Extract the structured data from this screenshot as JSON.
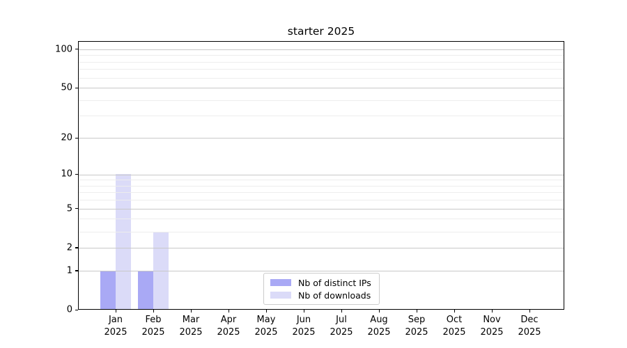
{
  "chart_data": {
    "type": "bar",
    "title": "starter 2025",
    "categories": [
      "Jan",
      "Feb",
      "Mar",
      "Apr",
      "May",
      "Jun",
      "Jul",
      "Aug",
      "Sep",
      "Oct",
      "Nov",
      "Dec"
    ],
    "year": "2025",
    "series": [
      {
        "name": "Nb of distinct IPs",
        "color": "#a9a9f5",
        "values": [
          1,
          1,
          0,
          0,
          0,
          0,
          0,
          0,
          0,
          0,
          0,
          0
        ]
      },
      {
        "name": "Nb of downloads",
        "color": "#dbdbf8",
        "values": [
          10,
          3,
          0,
          0,
          0,
          0,
          0,
          0,
          0,
          0,
          0,
          0
        ]
      }
    ],
    "y_scale": "log1p",
    "y_ticks_major": [
      0,
      1,
      2,
      5,
      10,
      20,
      50,
      100
    ],
    "y_ticks_minor": [
      3,
      4,
      6,
      7,
      8,
      9,
      30,
      40,
      60,
      70,
      80,
      90
    ],
    "ylim": [
      0,
      115
    ],
    "xlabel": "",
    "ylabel": "",
    "grid": "both",
    "legend_position": "lower center"
  },
  "colors": {
    "grid_major": "#c8c8c8",
    "grid_minor": "#ededed",
    "spine": "#000000",
    "legend_border": "#cccccc",
    "text": "#000000"
  }
}
